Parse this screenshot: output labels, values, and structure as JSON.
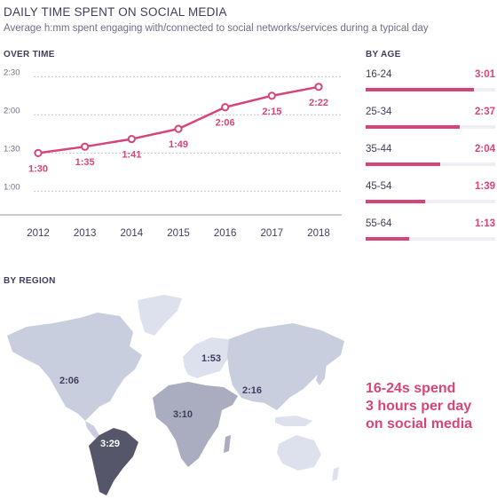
{
  "header": {
    "title": "DAILY TIME SPENT ON SOCIAL MEDIA",
    "subtitle": "Average h:mm spent engaging with/connected to social networks/services during a typical day"
  },
  "sections": {
    "over_time": "OVER TIME",
    "by_age": "BY AGE",
    "by_region": "BY REGION"
  },
  "callout": {
    "line1": "16-24s spend",
    "line2": "3 hours per day",
    "line3": "on social media"
  },
  "colors": {
    "accent": "#d6457a",
    "text": "#3e3d5c",
    "map_light": "#dde1ee",
    "map_medium": "#c9cede",
    "map_dark": "#a9adbf",
    "map_darkest": "#55566a"
  },
  "chart_data": [
    {
      "type": "line",
      "title": "OVER TIME",
      "x": [
        "2012",
        "2013",
        "2014",
        "2015",
        "2016",
        "2017",
        "2018"
      ],
      "values_minutes": [
        90,
        95,
        101,
        109,
        126,
        135,
        142
      ],
      "data_labels": [
        "1:30",
        "1:35",
        "1:41",
        "1:49",
        "2:06",
        "2:15",
        "2:22"
      ],
      "y_ticks": [
        "1:00",
        "1:30",
        "2:00",
        "2:30"
      ],
      "y_tick_minutes": [
        60,
        90,
        120,
        150
      ],
      "ylim_minutes": [
        47,
        160
      ],
      "grid": true
    },
    {
      "type": "bar",
      "title": "BY AGE",
      "categories": [
        "16-24",
        "25-34",
        "35-44",
        "45-54",
        "55-64"
      ],
      "values_minutes": [
        181,
        157,
        124,
        99,
        73
      ],
      "data_labels": [
        "3:01",
        "2:37",
        "2:04",
        "1:39",
        "1:13"
      ],
      "xlim_minutes": [
        0,
        216
      ]
    },
    {
      "type": "map",
      "title": "BY REGION",
      "regions": [
        {
          "region": "north-america",
          "label": "2:06",
          "shade": "#c9cede"
        },
        {
          "region": "south-america",
          "label": "3:29",
          "shade": "#55566a"
        },
        {
          "region": "europe",
          "label": "1:53",
          "shade": "#dde1ee"
        },
        {
          "region": "africa-middle-east",
          "label": "3:10",
          "shade": "#a9adbf"
        },
        {
          "region": "asia",
          "label": "2:16",
          "shade": "#c9cede"
        }
      ]
    }
  ]
}
